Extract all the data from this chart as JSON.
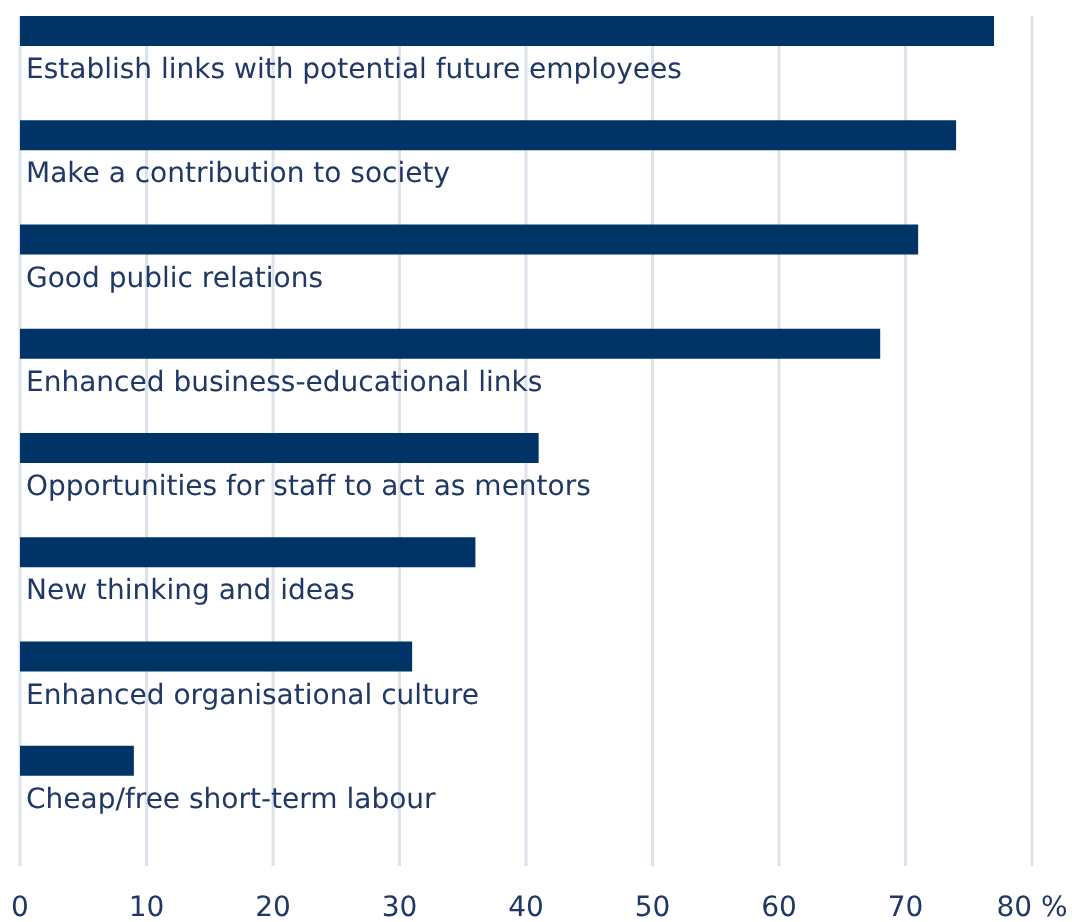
{
  "chart_data": {
    "type": "bar",
    "orientation": "horizontal",
    "categories": [
      "Establish links with potential future employees",
      "Make a contribution to society",
      "Good public relations",
      "Enhanced business-educational links",
      "Opportunities for staff to act as mentors",
      "New thinking and ideas",
      "Enhanced organisational culture",
      "Cheap/free short-term labour"
    ],
    "values": [
      77,
      74,
      71,
      68,
      41,
      36,
      31,
      9
    ],
    "color": "#003366",
    "xlim": [
      0,
      80
    ],
    "xticks": [
      0,
      10,
      20,
      30,
      40,
      50,
      60,
      70,
      {
        "value": 80,
        "label": "80 %"
      }
    ],
    "grid": "x"
  }
}
